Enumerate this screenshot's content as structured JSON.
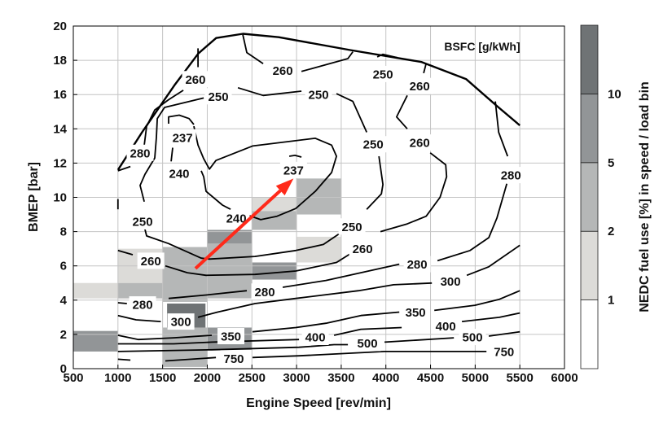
{
  "chart_data": {
    "type": "contour",
    "xlabel": "Engine Speed [rev/min]",
    "ylabel": "BMEP [bar]",
    "xlim": [
      500,
      6000
    ],
    "ylim": [
      0,
      20
    ],
    "xticks": [
      500,
      1000,
      1500,
      2000,
      2500,
      3000,
      3500,
      4000,
      4500,
      5000,
      5500,
      6000
    ],
    "yticks": [
      0,
      2,
      4,
      6,
      8,
      10,
      12,
      14,
      16,
      18,
      20
    ],
    "grid": true,
    "contour_title": "BSFC [g/kWh]",
    "full_load_curve": [
      [
        1000,
        11.6
      ],
      [
        1270,
        13.8
      ],
      [
        1640,
        16.6
      ],
      [
        1900,
        18.4
      ],
      [
        2100,
        19.3
      ],
      [
        2400,
        19.55
      ],
      [
        2800,
        19.35
      ],
      [
        3600,
        18.6
      ],
      [
        4400,
        17.9
      ],
      [
        4900,
        16.9
      ],
      [
        5250,
        15.3
      ],
      [
        5500,
        14.2
      ]
    ],
    "contours": [
      {
        "level": 237,
        "segments": [
          [
            [
              1567,
              14.3
            ],
            [
              1567,
              14.7
            ],
            [
              1686,
              14.8
            ],
            [
              1796,
              14.6
            ],
            [
              1850,
              14.25
            ]
          ],
          [
            [
              2918,
              12.4
            ],
            [
              2982,
              12.45
            ],
            [
              3055,
              12.35
            ]
          ]
        ],
        "labels": [
          [
            1723,
            13.5
          ],
          [
            2966,
            11.6
          ]
        ]
      },
      {
        "level": 240,
        "segments": [
          [
            [
              1932,
              11.55
            ],
            [
              1960,
              11.2
            ],
            [
              1987,
              10.35
            ],
            [
              2170,
              9.55
            ],
            [
              2261,
              9.3
            ]
          ],
          [
            [
              2462,
              8.95
            ],
            [
              2599,
              8.7
            ],
            [
              2781,
              8.9
            ],
            [
              2991,
              9.35
            ],
            [
              3210,
              10.35
            ],
            [
              3392,
              11.45
            ],
            [
              3447,
              12.4
            ],
            [
              3392,
              13.05
            ],
            [
              3210,
              13.45
            ],
            [
              2507,
              13.0
            ],
            [
              2097,
              12.15
            ],
            [
              2024,
              11.65
            ],
            [
              1960,
              12.25
            ],
            [
              1896,
              13.05
            ],
            [
              1850,
              14.15
            ]
          ],
          [
            [
              1613,
              12.9
            ],
            [
              1595,
              12.1
            ]
          ]
        ],
        "labels": [
          [
            1686,
            11.4
          ],
          [
            2325,
            8.8
          ]
        ]
      },
      {
        "level": 250,
        "segments": [
          [
            [
              1960,
              15.8
            ],
            [
              1522,
              15.25
            ],
            [
              1440,
              14.6
            ],
            [
              1430,
              13.5
            ],
            [
              1412,
              12.3
            ],
            [
              1303,
              11.35
            ],
            [
              1248,
              10.7
            ],
            [
              1294,
              9.75
            ]
          ],
          [
            [
              1294,
              8.3
            ],
            [
              1321,
              7.75
            ],
            [
              1567,
              7.3
            ],
            [
              1932,
              6.45
            ],
            [
              2024,
              6.4
            ],
            [
              2535,
              6.55
            ],
            [
              2991,
              6.9
            ],
            [
              3300,
              7.25
            ],
            [
              3484,
              7.9
            ]
          ],
          [
            [
              3785,
              9.3
            ],
            [
              3950,
              10.2
            ],
            [
              3967,
              10.75
            ],
            [
              3922,
              12.4
            ]
          ],
          [
            [
              3785,
              13.8
            ],
            [
              3630,
              15.6
            ],
            [
              3447,
              16.05
            ]
          ],
          [
            [
              3055,
              16.2
            ],
            [
              2626,
              15.95
            ],
            [
              2343,
              16.4
            ]
          ],
          [
            [
              3903,
              18.2
            ],
            [
              3967,
              18.35
            ],
            [
              4131,
              18.15
            ]
          ],
          [
            [
              1000,
              9.3
            ],
            [
              1000,
              9.9
            ]
          ]
        ],
        "labels": [
          [
            2124,
            15.9
          ],
          [
            3246,
            16.0
          ],
          [
            3967,
            17.2
          ],
          [
            3858,
            13.1
          ],
          [
            1276,
            8.6
          ],
          [
            3620,
            8.3
          ]
        ]
      },
      {
        "level": 260,
        "segments": [
          [
            [
              1896,
              18.7
            ],
            [
              1896,
              17.6
            ]
          ],
          [
            [
              2398,
              19.5
            ],
            [
              2443,
              18.45
            ],
            [
              2626,
              17.8
            ]
          ],
          [
            [
              3055,
              17.35
            ],
            [
              3575,
              18.1
            ],
            [
              3630,
              18.5
            ]
          ],
          [
            [
              4450,
              17.8
            ],
            [
              4423,
              17.25
            ]
          ],
          [
            [
              4240,
              15.95
            ],
            [
              4120,
              14.7
            ],
            [
              4240,
              14.0
            ]
          ],
          [
            [
              4497,
              12.6
            ],
            [
              4670,
              11.9
            ],
            [
              4680,
              11.2
            ],
            [
              4606,
              10.0
            ],
            [
              4451,
              8.9
            ],
            [
              4240,
              8.45
            ],
            [
              3940,
              8.0
            ]
          ],
          [
            [
              3630,
              6.8
            ],
            [
              3447,
              6.2
            ],
            [
              2991,
              5.7
            ],
            [
              2535,
              5.5
            ],
            [
              1987,
              5.45
            ],
            [
              1777,
              5.6
            ],
            [
              1531,
              6.0
            ]
          ],
          [
            [
              1166,
              6.65
            ],
            [
              1000,
              6.9
            ]
          ]
        ],
        "labels": [
          [
            1868,
            16.9
          ],
          [
            2845,
            17.4
          ],
          [
            4378,
            16.5
          ],
          [
            4378,
            13.2
          ],
          [
            3739,
            7.0
          ],
          [
            1368,
            6.3
          ]
        ]
      },
      {
        "level": 280,
        "segments": [
          [
            [
              1732,
              16.25
            ],
            [
              1567,
              15.7
            ],
            [
              1412,
              15.1
            ],
            [
              1321,
              14.15
            ],
            [
              1294,
              13.05
            ]
          ],
          [
            [
              1139,
              11.8
            ],
            [
              1000,
              11.55
            ]
          ],
          [
            [
              5226,
              15.6
            ],
            [
              5263,
              13.8
            ],
            [
              5363,
              12.4
            ]
          ],
          [
            [
              5354,
              10.8
            ],
            [
              5244,
              8.8
            ],
            [
              5153,
              7.65
            ],
            [
              4943,
              6.9
            ],
            [
              4578,
              6.3
            ]
          ],
          [
            [
              4150,
              6.1
            ],
            [
              3329,
              5.15
            ],
            [
              2845,
              4.75
            ]
          ],
          [
            [
              2443,
              4.55
            ],
            [
              1987,
              4.3
            ],
            [
              1567,
              4.1
            ]
          ],
          [
            [
              1100,
              3.8
            ],
            [
              1000,
              3.85
            ]
          ]
        ],
        "labels": [
          [
            1248,
            12.6
          ],
          [
            5400,
            11.3
          ],
          [
            4350,
            6.1
          ],
          [
            2644,
            4.5
          ],
          [
            1276,
            3.75
          ]
        ]
      },
      {
        "level": 300,
        "segments": [
          [
            [
              1000,
              3.1
            ],
            [
              1203,
              2.85
            ],
            [
              1480,
              2.75
            ]
          ],
          [
            [
              1896,
              3.0
            ],
            [
              2115,
              3.3
            ],
            [
              2535,
              3.8
            ],
            [
              2991,
              4.1
            ],
            [
              3694,
              4.55
            ],
            [
              4086,
              4.9
            ],
            [
              4515,
              5.0
            ]
          ],
          [
            [
              4906,
              5.45
            ],
            [
              5153,
              5.95
            ],
            [
              5500,
              7.2
            ]
          ]
        ],
        "labels": [
          [
            1705,
            2.75
          ],
          [
            4724,
            5.1
          ]
        ]
      },
      {
        "level": 350,
        "segments": [
          [
            [
              1000,
              1.95
            ],
            [
              1230,
              1.7
            ],
            [
              1622,
              1.8
            ],
            [
              2051,
              1.95
            ]
          ],
          [
            [
              2507,
              2.15
            ],
            [
              2991,
              2.4
            ],
            [
              3329,
              2.65
            ],
            [
              3720,
              3.1
            ],
            [
              4150,
              3.3
            ]
          ],
          [
            [
              4542,
              3.4
            ],
            [
              4998,
              3.7
            ],
            [
              5272,
              4.05
            ],
            [
              5500,
              4.55
            ]
          ]
        ],
        "labels": [
          [
            2265,
            1.9
          ],
          [
            4332,
            3.3
          ]
        ]
      },
      {
        "level": 400,
        "segments": [
          [
            [
              1000,
              1.45
            ],
            [
              1622,
              1.45
            ],
            [
              2051,
              1.55
            ],
            [
              3027,
              1.7
            ]
          ],
          [
            [
              3420,
              1.95
            ],
            [
              3720,
              2.3
            ],
            [
              4177,
              2.4
            ]
          ],
          [
            [
              4852,
              2.75
            ],
            [
              5272,
              3.0
            ],
            [
              5500,
              3.25
            ]
          ]
        ],
        "labels": [
          [
            3210,
            1.85
          ],
          [
            4670,
            2.5
          ]
        ]
      },
      {
        "level": 500,
        "segments": [
          [
            [
              1000,
              1.0
            ],
            [
              2051,
              1.1
            ],
            [
              3027,
              1.25
            ],
            [
              3420,
              1.4
            ],
            [
              3575,
              1.4
            ]
          ],
          [
            [
              3985,
              1.55
            ],
            [
              4761,
              1.8
            ]
          ],
          [
            [
              5153,
              1.9
            ],
            [
              5500,
              2.15
            ]
          ]
        ],
        "labels": [
          [
            3793,
            1.5
          ],
          [
            4970,
            1.85
          ]
        ]
      },
      {
        "level": 750,
        "segments": [
          [
            [
              1000,
              0.55
            ],
            [
              1139,
              0.5
            ]
          ],
          [
            [
              1531,
              0.45
            ],
            [
              2097,
              0.65
            ]
          ],
          [
            [
              2507,
              0.65
            ],
            [
              3027,
              0.75
            ],
            [
              3985,
              1.0
            ],
            [
              5126,
              1.0
            ]
          ]
        ],
        "labels": [
          [
            2297,
            0.6
          ],
          [
            5323,
            1.0
          ]
        ]
      }
    ],
    "heatmap": {
      "title": "NEDC fuel use [%] in speed / load bin",
      "colorbar_ticks": [
        "1",
        "2",
        "5",
        "10"
      ],
      "colorbar_levels": [
        {
          "range": "<1",
          "color": "#ffffff"
        },
        {
          "range": "1-2",
          "color": "#dcdbd8"
        },
        {
          "range": "2-5",
          "color": "#b5b7b7"
        },
        {
          "range": "5-10",
          "color": "#929597"
        },
        {
          "range": ">10",
          "color": "#6f7375"
        }
      ],
      "cells": [
        {
          "rpm": [
            500,
            1000
          ],
          "bmep": [
            4.1,
            5.0
          ],
          "level": "1-2"
        },
        {
          "rpm": [
            500,
            1000
          ],
          "bmep": [
            1.0,
            2.2
          ],
          "level": "5-10"
        },
        {
          "rpm": [
            1000,
            1500
          ],
          "bmep": [
            5.0,
            7.0
          ],
          "level": "1-2"
        },
        {
          "rpm": [
            1000,
            1500
          ],
          "bmep": [
            4.1,
            5.0
          ],
          "level": "2-5"
        },
        {
          "rpm": [
            1500,
            2000
          ],
          "bmep": [
            3.9,
            7.1
          ],
          "level": "2-5"
        },
        {
          "rpm": [
            2000,
            2500
          ],
          "bmep": [
            4.1,
            7.3
          ],
          "level": "2-5"
        },
        {
          "rpm": [
            2000,
            2500
          ],
          "bmep": [
            7.3,
            8.1
          ],
          "level": "5-10"
        },
        {
          "rpm": [
            1550,
            1980
          ],
          "bmep": [
            2.4,
            3.8
          ],
          "level": ">10"
        },
        {
          "rpm": [
            1500,
            2000
          ],
          "bmep": [
            0.1,
            2.4
          ],
          "level": "2-5"
        },
        {
          "rpm": [
            2000,
            2500
          ],
          "bmep": [
            1.1,
            2.4
          ],
          "level": "5-10"
        },
        {
          "rpm": [
            2500,
            3000
          ],
          "bmep": [
            9.2,
            10.0
          ],
          "level": "1-2"
        },
        {
          "rpm": [
            2500,
            3000
          ],
          "bmep": [
            8.1,
            9.2
          ],
          "level": "2-5"
        },
        {
          "rpm": [
            3000,
            3500
          ],
          "bmep": [
            9.0,
            11.1
          ],
          "level": "2-5"
        },
        {
          "rpm": [
            2500,
            3000
          ],
          "bmep": [
            5.2,
            6.2
          ],
          "level": "5-10"
        },
        {
          "rpm": [
            3000,
            3500
          ],
          "bmep": [
            6.2,
            7.7
          ],
          "level": "1-2"
        }
      ]
    },
    "annotation_arrow": {
      "from": [
        1868,
        5.85
      ],
      "to": [
        2966,
        11.1
      ],
      "color": "#ff2a1a"
    }
  }
}
